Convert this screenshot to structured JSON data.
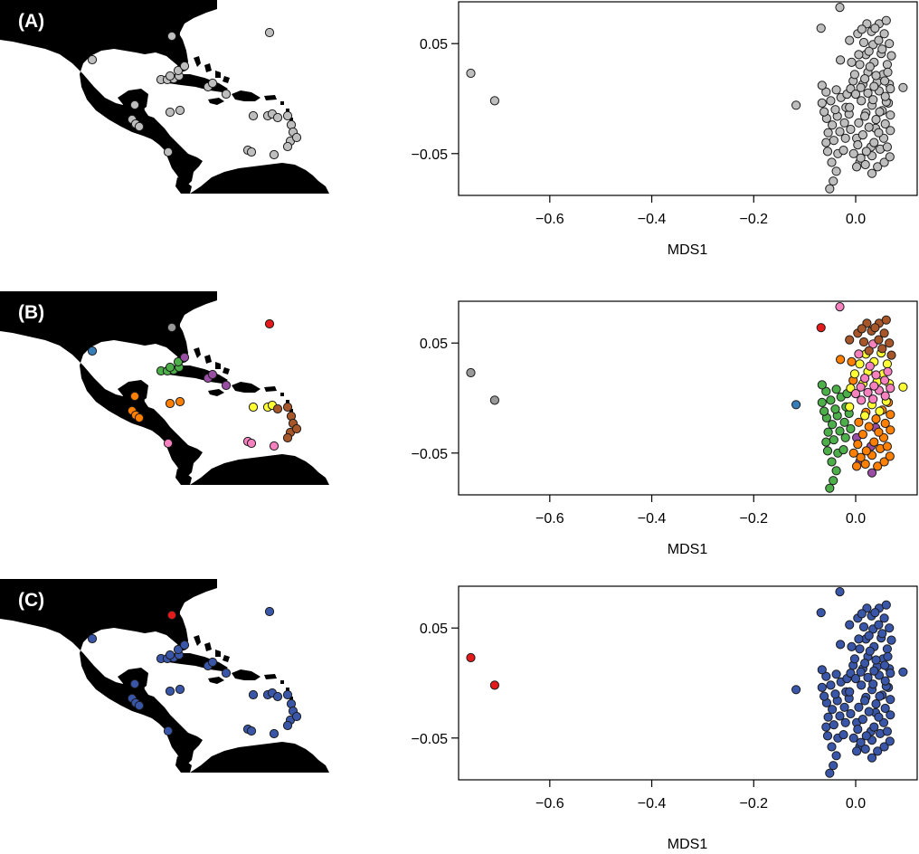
{
  "colors": {
    "gray": "#bebebe",
    "red": "#e41a1c",
    "blue": "#377eb8",
    "green": "#4daf4a",
    "purple": "#984ea3",
    "orange": "#ff7f00",
    "yellow": "#ffff33",
    "brown": "#a65628",
    "pink": "#f781bf",
    "darkgray": "#999999",
    "navy": "#3a56a8"
  },
  "panels": [
    {
      "label": "(A)",
      "scheme": "A"
    },
    {
      "label": "(B)",
      "scheme": "B"
    },
    {
      "label": "(C)",
      "scheme": "C"
    }
  ],
  "chart_data": [
    {
      "type": "scatter",
      "panel": "(A)",
      "xlabel": "MDS1",
      "ylabel": "",
      "xlim": [
        -0.77,
        0.11
      ],
      "ylim": [
        -0.088,
        0.088
      ],
      "xticks": [
        -0.6,
        -0.4,
        -0.2,
        0.0
      ],
      "xtick_labels": [
        "−0.6",
        "−0.4",
        "−0.2",
        "0.0"
      ],
      "yticks": [
        0.05,
        -0.05
      ],
      "ytick_labels": [
        "0.05",
        "−0.05"
      ],
      "series": [
        {
          "color": "gray",
          "points": "all"
        }
      ]
    },
    {
      "type": "scatter",
      "panel": "(B)",
      "xlabel": "MDS1",
      "ylabel": "",
      "xlim": [
        -0.77,
        0.11
      ],
      "ylim": [
        -0.088,
        0.088
      ],
      "xticks": [
        -0.6,
        -0.4,
        -0.2,
        0.0
      ],
      "xtick_labels": [
        "−0.6",
        "−0.4",
        "−0.2",
        "0.0"
      ],
      "yticks": [
        0.05,
        -0.05
      ],
      "ytick_labels": [
        "0.05",
        "−0.05"
      ],
      "series": [
        {
          "color": "by-group",
          "points": "all"
        }
      ]
    },
    {
      "type": "scatter",
      "panel": "(C)",
      "xlabel": "MDS1",
      "ylabel": "",
      "xlim": [
        -0.77,
        0.11
      ],
      "ylim": [
        -0.088,
        0.088
      ],
      "xticks": [
        -0.6,
        -0.4,
        -0.2,
        0.0
      ],
      "xtick_labels": [
        "−0.6",
        "−0.4",
        "−0.2",
        "0.0"
      ],
      "yticks": [
        0.05,
        -0.05
      ],
      "ytick_labels": [
        "0.05",
        "−0.05"
      ],
      "series": [
        {
          "color": "navy",
          "points": "non-outlier"
        },
        {
          "color": "red",
          "points": "outlier"
        }
      ]
    }
  ],
  "points": [
    {
      "x": -0.755,
      "y": 0.023,
      "g": "darkgray",
      "o": 1
    },
    {
      "x": -0.708,
      "y": -0.002,
      "g": "darkgray",
      "o": 1
    },
    {
      "x": -0.117,
      "y": -0.006,
      "g": "blue",
      "o": 0
    },
    {
      "x": -0.068,
      "y": 0.064,
      "g": "red",
      "o": 0
    },
    {
      "x": -0.031,
      "y": 0.083,
      "g": "pink",
      "o": 0
    },
    {
      "x": 0.093,
      "y": 0.01,
      "g": "yellow",
      "o": 0
    },
    {
      "x": -0.051,
      "y": -0.082,
      "g": "green",
      "o": 0
    },
    {
      "x": -0.044,
      "y": -0.075,
      "g": "green",
      "o": 0
    },
    {
      "x": -0.038,
      "y": -0.066,
      "g": "green",
      "o": 0
    },
    {
      "x": -0.047,
      "y": -0.058,
      "g": "green",
      "o": 0
    },
    {
      "x": -0.035,
      "y": -0.05,
      "g": "green",
      "o": 0
    },
    {
      "x": -0.055,
      "y": -0.048,
      "g": "green",
      "o": 0
    },
    {
      "x": -0.024,
      "y": -0.047,
      "g": "green",
      "o": 0
    },
    {
      "x": -0.058,
      "y": -0.04,
      "g": "green",
      "o": 0
    },
    {
      "x": -0.043,
      "y": -0.038,
      "g": "green",
      "o": 0
    },
    {
      "x": -0.02,
      "y": -0.036,
      "g": "green",
      "o": 0
    },
    {
      "x": -0.054,
      "y": -0.031,
      "g": "green",
      "o": 0
    },
    {
      "x": -0.031,
      "y": -0.03,
      "g": "green",
      "o": 0
    },
    {
      "x": -0.01,
      "y": -0.028,
      "g": "green",
      "o": 0
    },
    {
      "x": -0.046,
      "y": -0.024,
      "g": "green",
      "o": 0
    },
    {
      "x": -0.022,
      "y": -0.022,
      "g": "green",
      "o": 0
    },
    {
      "x": -0.057,
      "y": -0.018,
      "g": "green",
      "o": 0
    },
    {
      "x": -0.036,
      "y": -0.016,
      "g": "green",
      "o": 0
    },
    {
      "x": -0.013,
      "y": -0.014,
      "g": "green",
      "o": 0
    },
    {
      "x": -0.062,
      "y": -0.012,
      "g": "green",
      "o": 0
    },
    {
      "x": -0.04,
      "y": -0.01,
      "g": "green",
      "o": 0
    },
    {
      "x": -0.019,
      "y": -0.008,
      "g": "green",
      "o": 0
    },
    {
      "x": -0.066,
      "y": -0.004,
      "g": "green",
      "o": 0
    },
    {
      "x": -0.049,
      "y": -0.002,
      "g": "green",
      "o": 0
    },
    {
      "x": -0.029,
      "y": 0.001,
      "g": "green",
      "o": 0
    },
    {
      "x": -0.058,
      "y": 0.006,
      "g": "green",
      "o": 0
    },
    {
      "x": -0.038,
      "y": 0.008,
      "g": "green",
      "o": 0
    },
    {
      "x": -0.017,
      "y": 0.004,
      "g": "green",
      "o": 0
    },
    {
      "x": -0.066,
      "y": 0.012,
      "g": "green",
      "o": 0
    },
    {
      "x": 0.032,
      "y": -0.068,
      "g": "purple",
      "o": 0
    },
    {
      "x": 0.008,
      "y": -0.058,
      "g": "purple",
      "o": 0
    },
    {
      "x": 0.03,
      "y": -0.044,
      "g": "purple",
      "o": 0
    },
    {
      "x": 0.002,
      "y": -0.036,
      "g": "purple",
      "o": 0
    },
    {
      "x": 0.039,
      "y": -0.027,
      "g": "purple",
      "o": 0
    },
    {
      "x": 0.002,
      "y": -0.062,
      "g": "orange",
      "o": 0
    },
    {
      "x": 0.019,
      "y": -0.06,
      "g": "orange",
      "o": 0
    },
    {
      "x": 0.043,
      "y": -0.062,
      "g": "orange",
      "o": 0
    },
    {
      "x": 0.056,
      "y": -0.058,
      "g": "orange",
      "o": 0
    },
    {
      "x": 0.01,
      "y": -0.054,
      "g": "orange",
      "o": 0
    },
    {
      "x": 0.032,
      "y": -0.052,
      "g": "orange",
      "o": 0
    },
    {
      "x": 0.067,
      "y": -0.053,
      "g": "orange",
      "o": 0
    },
    {
      "x": -0.004,
      "y": -0.05,
      "g": "orange",
      "o": 0
    },
    {
      "x": 0.021,
      "y": -0.048,
      "g": "orange",
      "o": 0
    },
    {
      "x": 0.048,
      "y": -0.046,
      "g": "orange",
      "o": 0
    },
    {
      "x": 0.062,
      "y": -0.044,
      "g": "orange",
      "o": 0
    },
    {
      "x": 0.004,
      "y": -0.042,
      "g": "orange",
      "o": 0
    },
    {
      "x": 0.036,
      "y": -0.04,
      "g": "orange",
      "o": 0
    },
    {
      "x": 0.055,
      "y": -0.036,
      "g": "orange",
      "o": 0
    },
    {
      "x": 0.014,
      "y": -0.033,
      "g": "orange",
      "o": 0
    },
    {
      "x": 0.045,
      "y": -0.031,
      "g": "orange",
      "o": 0
    },
    {
      "x": 0.068,
      "y": -0.029,
      "g": "orange",
      "o": 0
    },
    {
      "x": 0.026,
      "y": -0.026,
      "g": "orange",
      "o": 0
    },
    {
      "x": 0.058,
      "y": -0.023,
      "g": "orange",
      "o": 0
    },
    {
      "x": 0.006,
      "y": -0.022,
      "g": "orange",
      "o": 0
    },
    {
      "x": 0.04,
      "y": -0.019,
      "g": "orange",
      "o": 0
    },
    {
      "x": 0.068,
      "y": -0.015,
      "g": "orange",
      "o": 0
    },
    {
      "x": 0.02,
      "y": -0.013,
      "g": "orange",
      "o": 0
    },
    {
      "x": 0.052,
      "y": -0.011,
      "g": "orange",
      "o": 0
    },
    {
      "x": 0.064,
      "y": -0.004,
      "g": "orange",
      "o": 0
    },
    {
      "x": -0.03,
      "y": 0.035,
      "g": "orange",
      "o": 0
    },
    {
      "x": -0.008,
      "y": 0.033,
      "g": "orange",
      "o": 0
    },
    {
      "x": -0.005,
      "y": 0.016,
      "g": "orange",
      "o": 0
    },
    {
      "x": 0.018,
      "y": -0.016,
      "g": "yellow",
      "o": 0
    },
    {
      "x": 0.047,
      "y": -0.012,
      "g": "yellow",
      "o": 0
    },
    {
      "x": -0.012,
      "y": -0.008,
      "g": "yellow",
      "o": 0
    },
    {
      "x": 0.032,
      "y": -0.006,
      "g": "yellow",
      "o": 0
    },
    {
      "x": 0.06,
      "y": -0.003,
      "g": "yellow",
      "o": 0
    },
    {
      "x": -0.01,
      "y": 0.009,
      "g": "yellow",
      "o": 0
    },
    {
      "x": 0.014,
      "y": 0.013,
      "g": "yellow",
      "o": 0
    },
    {
      "x": 0.042,
      "y": 0.015,
      "g": "yellow",
      "o": 0
    },
    {
      "x": 0.066,
      "y": 0.013,
      "g": "yellow",
      "o": 0
    },
    {
      "x": -0.002,
      "y": 0.022,
      "g": "yellow",
      "o": 0
    },
    {
      "x": 0.024,
      "y": 0.024,
      "g": "yellow",
      "o": 0
    },
    {
      "x": 0.054,
      "y": 0.022,
      "g": "yellow",
      "o": 0
    },
    {
      "x": 0.008,
      "y": 0.031,
      "g": "yellow",
      "o": 0
    },
    {
      "x": 0.036,
      "y": 0.033,
      "g": "yellow",
      "o": 0
    },
    {
      "x": 0.062,
      "y": 0.031,
      "g": "yellow",
      "o": 0
    },
    {
      "x": 0.02,
      "y": 0.04,
      "g": "yellow",
      "o": 0
    },
    {
      "x": 0.05,
      "y": 0.041,
      "g": "yellow",
      "o": 0
    },
    {
      "x": 0.011,
      "y": -0.002,
      "g": "pink",
      "o": 0
    },
    {
      "x": 0.034,
      "y": -0.001,
      "g": "pink",
      "o": 0
    },
    {
      "x": 0.058,
      "y": 0.002,
      "g": "pink",
      "o": 0
    },
    {
      "x": 0.0,
      "y": 0.004,
      "g": "pink",
      "o": 0
    },
    {
      "x": 0.024,
      "y": 0.005,
      "g": "pink",
      "o": 0
    },
    {
      "x": 0.046,
      "y": 0.007,
      "g": "pink",
      "o": 0
    },
    {
      "x": 0.068,
      "y": 0.009,
      "g": "pink",
      "o": 0
    },
    {
      "x": 0.01,
      "y": 0.01,
      "g": "pink",
      "o": 0
    },
    {
      "x": 0.036,
      "y": 0.011,
      "g": "pink",
      "o": 0
    },
    {
      "x": 0.057,
      "y": 0.016,
      "g": "pink",
      "o": 0
    },
    {
      "x": 0.018,
      "y": 0.018,
      "g": "pink",
      "o": 0
    },
    {
      "x": 0.04,
      "y": 0.021,
      "g": "pink",
      "o": 0
    },
    {
      "x": 0.063,
      "y": 0.024,
      "g": "pink",
      "o": 0
    },
    {
      "x": 0.028,
      "y": 0.029,
      "g": "pink",
      "o": 0
    },
    {
      "x": 0.006,
      "y": 0.04,
      "g": "pink",
      "o": 0
    },
    {
      "x": 0.034,
      "y": 0.049,
      "g": "pink",
      "o": 0
    },
    {
      "x": -0.012,
      "y": 0.053,
      "g": "brown",
      "o": 0
    },
    {
      "x": 0.016,
      "y": 0.051,
      "g": "brown",
      "o": 0
    },
    {
      "x": 0.045,
      "y": 0.053,
      "g": "brown",
      "o": 0
    },
    {
      "x": 0.066,
      "y": 0.05,
      "g": "brown",
      "o": 0
    },
    {
      "x": 0.004,
      "y": 0.059,
      "g": "brown",
      "o": 0
    },
    {
      "x": 0.031,
      "y": 0.061,
      "g": "brown",
      "o": 0
    },
    {
      "x": 0.056,
      "y": 0.059,
      "g": "brown",
      "o": 0
    },
    {
      "x": 0.022,
      "y": 0.068,
      "g": "brown",
      "o": 0
    },
    {
      "x": 0.046,
      "y": 0.068,
      "g": "brown",
      "o": 0
    },
    {
      "x": 0.06,
      "y": 0.071,
      "g": "brown",
      "o": 0
    },
    {
      "x": 0.038,
      "y": 0.064,
      "g": "brown",
      "o": 0
    },
    {
      "x": 0.012,
      "y": 0.063,
      "g": "brown",
      "o": 0
    },
    {
      "x": 0.026,
      "y": 0.043,
      "g": "brown",
      "o": 0
    },
    {
      "x": 0.052,
      "y": 0.045,
      "g": "brown",
      "o": 0
    },
    {
      "x": 0.07,
      "y": 0.039,
      "g": "brown",
      "o": 0
    }
  ],
  "map": {
    "sites": [
      {
        "x": 298,
        "y": 36,
        "g": "red",
        "o": 0
      },
      {
        "x": 190,
        "y": 40,
        "g": "darkgray",
        "o": 1
      },
      {
        "x": 102,
        "y": 66,
        "g": "blue",
        "o": 0
      },
      {
        "x": 178,
        "y": 88,
        "g": "green",
        "o": 0
      },
      {
        "x": 185,
        "y": 88,
        "g": "green",
        "o": 0
      },
      {
        "x": 192,
        "y": 87,
        "g": "green",
        "o": 0
      },
      {
        "x": 198,
        "y": 84,
        "g": "green",
        "o": 0
      },
      {
        "x": 197,
        "y": 78,
        "g": "green",
        "o": 0
      },
      {
        "x": 204,
        "y": 73,
        "g": "purple",
        "o": 0
      },
      {
        "x": 188,
        "y": 84,
        "g": "green",
        "o": 0
      },
      {
        "x": 230,
        "y": 96,
        "g": "purple",
        "o": 0
      },
      {
        "x": 250,
        "y": 104,
        "g": "purple",
        "o": 0
      },
      {
        "x": 235,
        "y": 92,
        "g": "purple",
        "o": 0
      },
      {
        "x": 149,
        "y": 116,
        "g": "orange",
        "o": 0
      },
      {
        "x": 146,
        "y": 132,
        "g": "orange",
        "o": 0
      },
      {
        "x": 150,
        "y": 137,
        "g": "orange",
        "o": 0
      },
      {
        "x": 154,
        "y": 140,
        "g": "orange",
        "o": 0
      },
      {
        "x": 188,
        "y": 124,
        "g": "orange",
        "o": 0
      },
      {
        "x": 199,
        "y": 122,
        "g": "orange",
        "o": 0
      },
      {
        "x": 186,
        "y": 168,
        "g": "pink",
        "o": 0
      },
      {
        "x": 280,
        "y": 128,
        "g": "yellow",
        "o": 0
      },
      {
        "x": 296,
        "y": 128,
        "g": "yellow",
        "o": 0
      },
      {
        "x": 301,
        "y": 126,
        "g": "yellow",
        "o": 0
      },
      {
        "x": 307,
        "y": 130,
        "g": "brown",
        "o": 0
      },
      {
        "x": 318,
        "y": 128,
        "g": "brown",
        "o": 0
      },
      {
        "x": 322,
        "y": 138,
        "g": "brown",
        "o": 0
      },
      {
        "x": 324,
        "y": 146,
        "g": "brown",
        "o": 0
      },
      {
        "x": 321,
        "y": 156,
        "g": "brown",
        "o": 0
      },
      {
        "x": 328,
        "y": 152,
        "g": "brown",
        "o": 0
      },
      {
        "x": 318,
        "y": 162,
        "g": "brown",
        "o": 0
      },
      {
        "x": 274,
        "y": 166,
        "g": "pink",
        "o": 0
      },
      {
        "x": 278,
        "y": 168,
        "g": "pink",
        "o": 0
      },
      {
        "x": 303,
        "y": 171,
        "g": "pink",
        "o": 0
      }
    ]
  }
}
